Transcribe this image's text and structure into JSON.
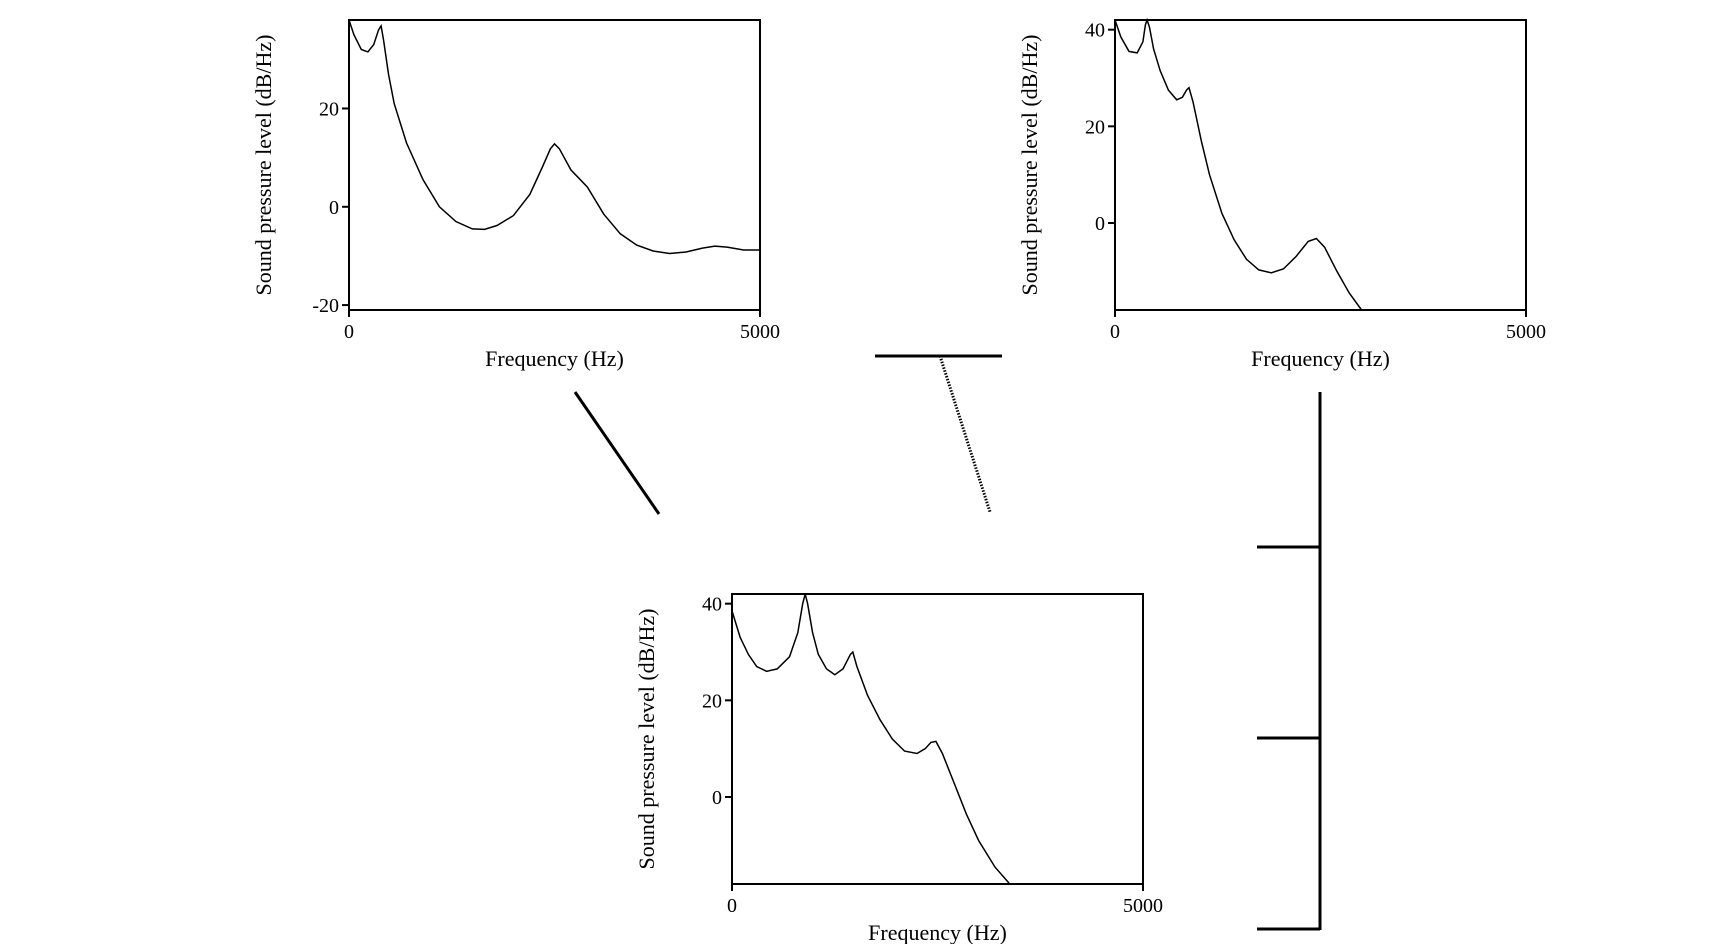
{
  "chart_data": [
    {
      "type": "line",
      "xlabel": "Frequency (Hz)",
      "ylabel": "Sound pressure level (dB/Hz)",
      "xlim": [
        0,
        5000
      ],
      "ylim": [
        -21,
        38
      ],
      "xticks": [
        0,
        5000
      ],
      "xtick_labels": [
        "0",
        "5000"
      ],
      "yticks": [
        20,
        0,
        -20
      ],
      "ytick_labels": [
        "20",
        "0",
        "-20"
      ],
      "series": [
        {
          "points": [
            [
              0,
              38
            ],
            [
              60,
              35
            ],
            [
              150,
              32
            ],
            [
              230,
              31.5
            ],
            [
              300,
              33
            ],
            [
              360,
              36
            ],
            [
              390,
              36.8
            ],
            [
              420,
              34
            ],
            [
              480,
              27
            ],
            [
              550,
              21
            ],
            [
              700,
              13
            ],
            [
              900,
              5.5
            ],
            [
              1100,
              0
            ],
            [
              1300,
              -3
            ],
            [
              1500,
              -4.5
            ],
            [
              1650,
              -4.6
            ],
            [
              1800,
              -3.8
            ],
            [
              2000,
              -1.8
            ],
            [
              2200,
              2.5
            ],
            [
              2350,
              8
            ],
            [
              2450,
              11.8
            ],
            [
              2500,
              12.8
            ],
            [
              2560,
              11.8
            ],
            [
              2700,
              7.5
            ],
            [
              2900,
              4
            ],
            [
              3100,
              -1.5
            ],
            [
              3300,
              -5.5
            ],
            [
              3500,
              -7.8
            ],
            [
              3700,
              -9
            ],
            [
              3900,
              -9.5
            ],
            [
              4100,
              -9.2
            ],
            [
              4300,
              -8.4
            ],
            [
              4450,
              -8
            ],
            [
              4600,
              -8.2
            ],
            [
              4800,
              -8.8
            ],
            [
              5000,
              -8.8
            ]
          ]
        }
      ]
    },
    {
      "type": "line",
      "xlabel": "Frequency (Hz)",
      "ylabel": "Sound pressure level (dB/Hz)",
      "xlim": [
        0,
        5000
      ],
      "ylim": [
        -18,
        42
      ],
      "xticks": [
        0,
        5000
      ],
      "xtick_labels": [
        "0",
        "5000"
      ],
      "yticks": [
        40,
        20,
        0
      ],
      "ytick_labels": [
        "40",
        "20",
        "0"
      ],
      "series": [
        {
          "points": [
            [
              0,
              42
            ],
            [
              70,
              38.5
            ],
            [
              170,
              35.5
            ],
            [
              270,
              35.2
            ],
            [
              340,
              37.5
            ],
            [
              370,
              41
            ],
            [
              390,
              42
            ],
            [
              420,
              40.5
            ],
            [
              470,
              36
            ],
            [
              550,
              31.5
            ],
            [
              650,
              27.5
            ],
            [
              750,
              25.5
            ],
            [
              820,
              26
            ],
            [
              870,
              27.5
            ],
            [
              900,
              28
            ],
            [
              950,
              25
            ],
            [
              1050,
              17
            ],
            [
              1150,
              10
            ],
            [
              1300,
              2
            ],
            [
              1450,
              -3.5
            ],
            [
              1600,
              -7.5
            ],
            [
              1750,
              -9.7
            ],
            [
              1900,
              -10.3
            ],
            [
              2050,
              -9.5
            ],
            [
              2200,
              -7
            ],
            [
              2350,
              -3.8
            ],
            [
              2450,
              -3.2
            ],
            [
              2550,
              -5
            ],
            [
              2700,
              -10
            ],
            [
              2850,
              -14.5
            ],
            [
              3000,
              -18
            ]
          ]
        }
      ]
    },
    {
      "type": "line",
      "xlabel": "Frequency (Hz)",
      "ylabel": "Sound pressure level (dB/Hz)",
      "xlim": [
        0,
        5000
      ],
      "ylim": [
        -18,
        42
      ],
      "xticks": [
        0,
        5000
      ],
      "xtick_labels": [
        "0",
        "5000"
      ],
      "yticks": [
        40,
        20,
        0
      ],
      "ytick_labels": [
        "40",
        "20",
        "0"
      ],
      "series": [
        {
          "points": [
            [
              0,
              38.5
            ],
            [
              100,
              33
            ],
            [
              200,
              29.5
            ],
            [
              300,
              27
            ],
            [
              420,
              26
            ],
            [
              550,
              26.5
            ],
            [
              700,
              29
            ],
            [
              800,
              34
            ],
            [
              860,
              40
            ],
            [
              890,
              42
            ],
            [
              920,
              40
            ],
            [
              980,
              34
            ],
            [
              1050,
              29.5
            ],
            [
              1150,
              26.5
            ],
            [
              1250,
              25.3
            ],
            [
              1350,
              26.5
            ],
            [
              1440,
              29.5
            ],
            [
              1470,
              30
            ],
            [
              1520,
              27
            ],
            [
              1650,
              21
            ],
            [
              1800,
              16
            ],
            [
              1950,
              12
            ],
            [
              2100,
              9.5
            ],
            [
              2250,
              9
            ],
            [
              2350,
              10
            ],
            [
              2420,
              11.3
            ],
            [
              2480,
              11.5
            ],
            [
              2560,
              9
            ],
            [
              2700,
              3
            ],
            [
              2850,
              -3.5
            ],
            [
              3000,
              -9
            ],
            [
              3200,
              -14.5
            ],
            [
              3380,
              -18
            ]
          ]
        }
      ]
    }
  ]
}
